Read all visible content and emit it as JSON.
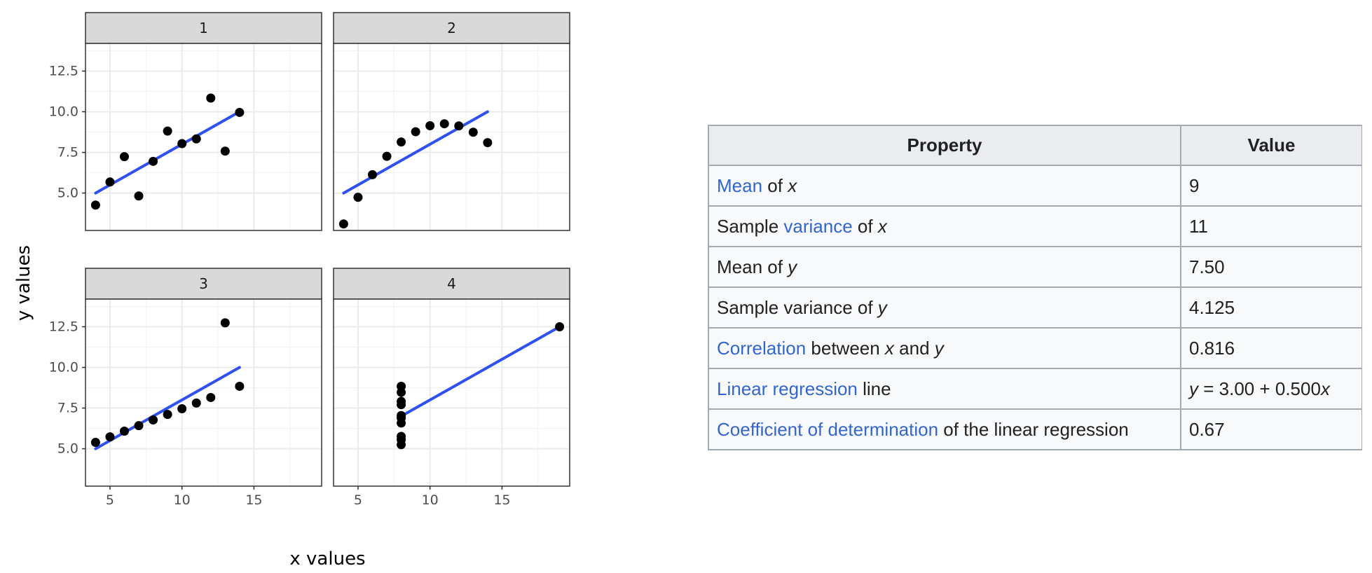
{
  "chart_data": {
    "type": "scatter",
    "xlabel": "x values",
    "ylabel": "y values",
    "xlim": [
      3.3,
      19.7
    ],
    "ylim": [
      2.7,
      14.2
    ],
    "xticks": [
      5,
      10,
      15
    ],
    "yticks": [
      5.0,
      7.5,
      10.0,
      12.5
    ],
    "xtick_labels": [
      "5",
      "10",
      "15"
    ],
    "ytick_labels": [
      "5.0",
      "7.5",
      "10.0",
      "12.5"
    ],
    "grid": true,
    "facets": [
      {
        "label": "1",
        "x": [
          10,
          8,
          13,
          9,
          11,
          14,
          6,
          4,
          12,
          7,
          5
        ],
        "y": [
          8.04,
          6.95,
          7.58,
          8.81,
          8.33,
          9.96,
          7.24,
          4.26,
          10.84,
          4.82,
          5.68
        ],
        "fit": {
          "x": [
            4,
            14
          ],
          "y": [
            5.0,
            10.0
          ]
        }
      },
      {
        "label": "2",
        "x": [
          10,
          8,
          13,
          9,
          11,
          14,
          6,
          4,
          12,
          7,
          5
        ],
        "y": [
          9.14,
          8.14,
          8.74,
          8.77,
          9.26,
          8.1,
          6.13,
          3.1,
          9.13,
          7.26,
          4.74
        ],
        "fit": {
          "x": [
            4,
            14
          ],
          "y": [
            5.0,
            10.0
          ]
        }
      },
      {
        "label": "3",
        "x": [
          10,
          8,
          13,
          9,
          11,
          14,
          6,
          4,
          12,
          7,
          5
        ],
        "y": [
          7.46,
          6.77,
          12.74,
          7.11,
          7.81,
          8.84,
          6.08,
          5.39,
          8.15,
          6.42,
          5.73
        ],
        "fit": {
          "x": [
            4,
            14
          ],
          "y": [
            5.0,
            10.0
          ]
        }
      },
      {
        "label": "4",
        "x": [
          8,
          8,
          8,
          8,
          8,
          8,
          8,
          19,
          8,
          8,
          8
        ],
        "y": [
          6.58,
          5.76,
          7.71,
          8.84,
          8.47,
          7.04,
          5.25,
          12.5,
          5.56,
          7.91,
          6.89
        ],
        "fit": {
          "x": [
            8,
            19
          ],
          "y": [
            7.0,
            12.5
          ]
        }
      }
    ],
    "colors": {
      "points": "#000000",
      "fit": "#3050f0",
      "strip": "#d9d9d9",
      "grid": "#ebebeb"
    }
  },
  "table": {
    "headers": [
      "Property",
      "Value"
    ],
    "rows": [
      {
        "parts": [
          {
            "t": "Mean",
            "link": true
          },
          {
            "t": " of "
          },
          {
            "t": "x",
            "em": true
          }
        ],
        "value": [
          {
            "t": "9"
          }
        ]
      },
      {
        "parts": [
          {
            "t": "Sample "
          },
          {
            "t": "variance",
            "link": true
          },
          {
            "t": " of "
          },
          {
            "t": "x",
            "em": true
          }
        ],
        "value": [
          {
            "t": "11"
          }
        ]
      },
      {
        "parts": [
          {
            "t": "Mean of "
          },
          {
            "t": "y",
            "em": true
          }
        ],
        "value": [
          {
            "t": "7.50"
          }
        ]
      },
      {
        "parts": [
          {
            "t": "Sample variance of "
          },
          {
            "t": "y",
            "em": true
          }
        ],
        "value": [
          {
            "t": "4.125"
          }
        ]
      },
      {
        "parts": [
          {
            "t": "Correlation",
            "link": true
          },
          {
            "t": " between "
          },
          {
            "t": "x",
            "em": true
          },
          {
            "t": " and "
          },
          {
            "t": "y",
            "em": true
          }
        ],
        "value": [
          {
            "t": "0.816"
          }
        ]
      },
      {
        "parts": [
          {
            "t": "Linear regression",
            "link": true
          },
          {
            "t": " line"
          }
        ],
        "value": [
          {
            "t": "y",
            "em": true
          },
          {
            "t": " = 3.00 + 0.500"
          },
          {
            "t": "x",
            "em": true
          }
        ]
      },
      {
        "parts": [
          {
            "t": "Coefficient of determination",
            "link": true
          },
          {
            "t": " of the linear regression"
          }
        ],
        "value": [
          {
            "t": "0.67"
          }
        ]
      }
    ],
    "colors": {
      "link": "#3366cc",
      "header_bg": "#eaecf0",
      "cell_bg": "#f8f9fa",
      "border": "#a2a9b1"
    }
  }
}
